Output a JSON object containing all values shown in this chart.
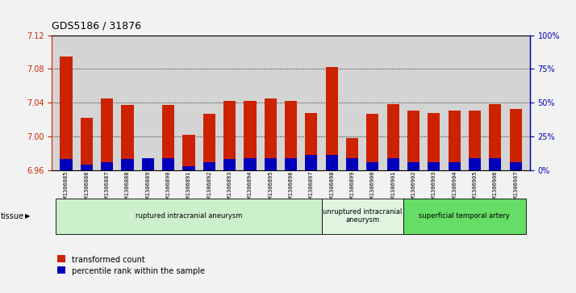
{
  "title": "GDS5186 / 31876",
  "samples": [
    "GSM1306885",
    "GSM1306886",
    "GSM1306887",
    "GSM1306888",
    "GSM1306889",
    "GSM1306890",
    "GSM1306891",
    "GSM1306892",
    "GSM1306893",
    "GSM1306894",
    "GSM1306895",
    "GSM1306896",
    "GSM1306897",
    "GSM1306898",
    "GSM1306899",
    "GSM1306900",
    "GSM1306901",
    "GSM1306902",
    "GSM1306903",
    "GSM1306904",
    "GSM1306905",
    "GSM1306906",
    "GSM1306907"
  ],
  "red_values": [
    7.095,
    7.022,
    7.045,
    7.037,
    6.972,
    7.037,
    7.002,
    7.027,
    7.042,
    7.042,
    7.045,
    7.042,
    7.028,
    7.082,
    6.998,
    7.027,
    7.038,
    7.03,
    7.028,
    7.03,
    7.03,
    7.038,
    7.032
  ],
  "blue_percentiles": [
    8,
    4,
    6,
    8,
    9,
    9,
    3,
    6,
    8,
    9,
    9,
    9,
    11,
    11,
    9,
    6,
    9,
    6,
    6,
    6,
    9,
    9,
    6
  ],
  "ylim_left": [
    6.96,
    7.12
  ],
  "ylim_right": [
    0,
    100
  ],
  "yticks_left": [
    6.96,
    7.0,
    7.04,
    7.08,
    7.12
  ],
  "yticks_right": [
    0,
    25,
    50,
    75,
    100
  ],
  "ytick_labels_right": [
    "0%",
    "25%",
    "50%",
    "75%",
    "100%"
  ],
  "baseline": 6.96,
  "tissue_groups": [
    {
      "label": "ruptured intracranial aneurysm",
      "start": 0,
      "end": 13,
      "color": "#ccf0cc"
    },
    {
      "label": "unruptured intracranial\naneurysm",
      "start": 13,
      "end": 17,
      "color": "#e0f5e0"
    },
    {
      "label": "superficial temporal artery",
      "start": 17,
      "end": 23,
      "color": "#66dd66"
    }
  ],
  "bar_color_red": "#cc2200",
  "bar_color_blue": "#0000bb",
  "fig_bg_color": "#f2f2f2",
  "plot_bg_color": "#d4d4d4",
  "left_axis_color": "#cc2200",
  "right_axis_color": "#0000bb"
}
